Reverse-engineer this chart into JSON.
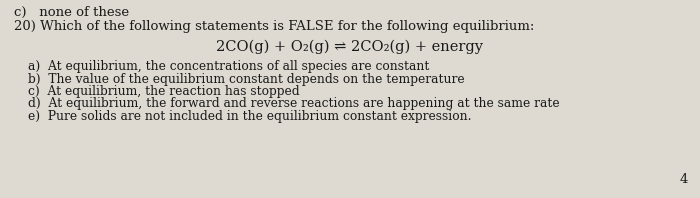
{
  "bg_color": "#dedad2",
  "top_label": "c)   none of these",
  "question": "20) Which of the following statements is FALSE for the following equilibrium:",
  "equation": "2CO(g) + O₂(g) ⇌ 2CO₂(g) + energy",
  "options": [
    "a)  At equilibrium, the concentrations of all species are constant",
    "b)  The value of the equilibrium constant depends on the temperature",
    "c)  At equilibrium, the reaction has stopped",
    "d)  At equilibrium, the forward and reverse reactions are happening at the same rate",
    "e)  Pure solids are not included in the equilibrium constant expression."
  ],
  "page_number": "4",
  "font_color": "#1a1a1a",
  "font_size_question": 9.5,
  "font_size_equation": 10.5,
  "font_size_options": 8.8,
  "font_size_top": 9.5,
  "font_size_page": 9.5
}
